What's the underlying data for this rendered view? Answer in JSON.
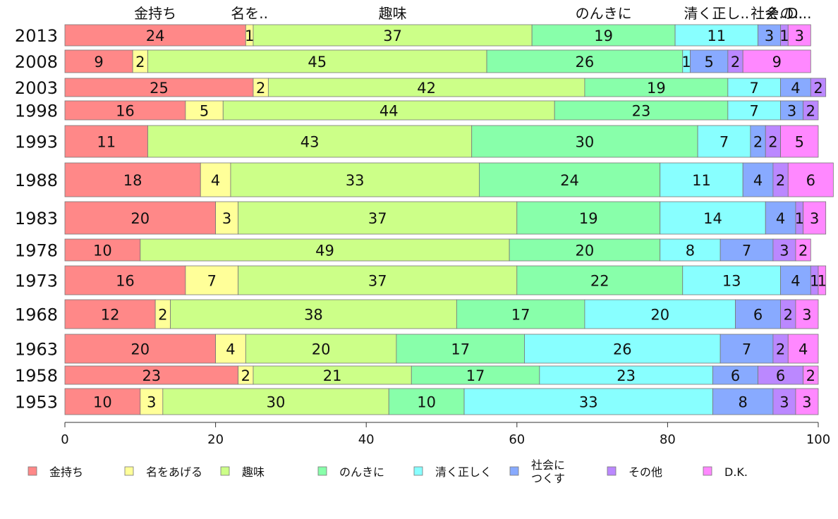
{
  "chart_data": {
    "type": "bar",
    "orientation": "horizontal",
    "stacked": true,
    "categories": [
      "2013",
      "2008",
      "2003",
      "1998",
      "1993",
      "1988",
      "1983",
      "1978",
      "1973",
      "1968",
      "1963",
      "1958",
      "1953"
    ],
    "series": [
      {
        "name": "金持ち",
        "top_label": "金持ち",
        "color": "#ff8888",
        "values": [
          24,
          9,
          25,
          16,
          11,
          18,
          20,
          10,
          16,
          12,
          20,
          23,
          10
        ]
      },
      {
        "name": "名をあげる",
        "top_label": "名を..",
        "color": "#ffff99",
        "values": [
          1,
          2,
          2,
          5,
          0,
          4,
          3,
          0,
          7,
          2,
          4,
          2,
          3
        ]
      },
      {
        "name": "趣味",
        "top_label": "趣味",
        "color": "#ccff88",
        "values": [
          37,
          45,
          42,
          44,
          43,
          33,
          37,
          49,
          37,
          38,
          20,
          21,
          30
        ]
      },
      {
        "name": "のんきに",
        "top_label": "のんきに",
        "color": "#88ffaa",
        "values": [
          19,
          26,
          19,
          23,
          30,
          24,
          19,
          20,
          22,
          17,
          17,
          17,
          10
        ]
      },
      {
        "name": "清く正しく",
        "top_label": "清く正し..",
        "color": "#88ffff",
        "values": [
          11,
          1,
          7,
          7,
          7,
          11,
          14,
          8,
          13,
          20,
          26,
          23,
          33
        ]
      },
      {
        "name": "社会に\nつくす",
        "top_label": "社会..",
        "color": "#88aaff",
        "values": [
          3,
          5,
          4,
          3,
          2,
          4,
          4,
          7,
          4,
          6,
          7,
          6,
          8
        ]
      },
      {
        "name": "その他",
        "top_label": "その..",
        "color": "#bb88ff",
        "values": [
          1,
          2,
          2,
          2,
          2,
          2,
          1,
          3,
          1,
          2,
          2,
          6,
          3
        ]
      },
      {
        "name": "D.K.",
        "top_label": "D...",
        "color": "#ff88ff",
        "values": [
          3,
          9,
          0,
          0,
          5,
          6,
          3,
          2,
          1,
          3,
          4,
          2,
          3
        ]
      }
    ],
    "xlim": [
      0,
      100
    ],
    "xticks": [
      0,
      20,
      40,
      60,
      80,
      100
    ],
    "grid": false,
    "legend_position": "bottom"
  }
}
